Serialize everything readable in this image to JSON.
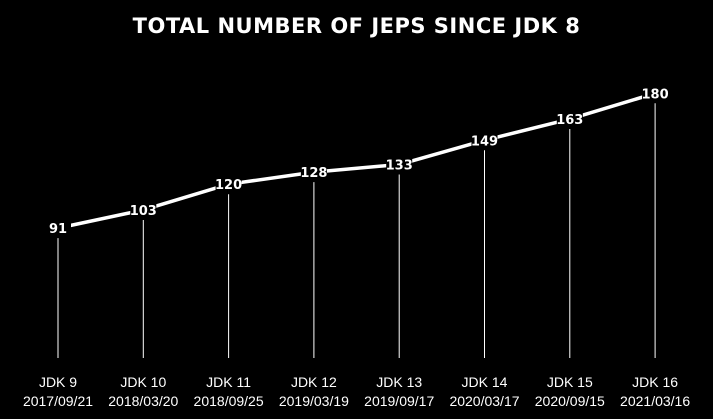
{
  "chart_data": {
    "type": "line",
    "title": "TOTAL NUMBER OF JEPS SINCE JDK 8",
    "categories": [
      "JDK 9",
      "JDK 10",
      "JDK 11",
      "JDK 12",
      "JDK 13",
      "JDK 14",
      "JDK 15",
      "JDK 16"
    ],
    "dates": [
      "2017/09/21",
      "2018/03/20",
      "2018/09/25",
      "2019/03/19",
      "2019/09/17",
      "2020/03/17",
      "2020/09/15",
      "2021/03/16"
    ],
    "values": [
      91,
      103,
      120,
      128,
      133,
      149,
      163,
      180
    ],
    "xlabel": "",
    "ylabel": "",
    "ylim": [
      0,
      180
    ],
    "grid": false,
    "legend": "none",
    "colors": {
      "background": "#000000",
      "line": "#ffffff",
      "text": "#ffffff",
      "drop_line": "#ffffff"
    }
  }
}
